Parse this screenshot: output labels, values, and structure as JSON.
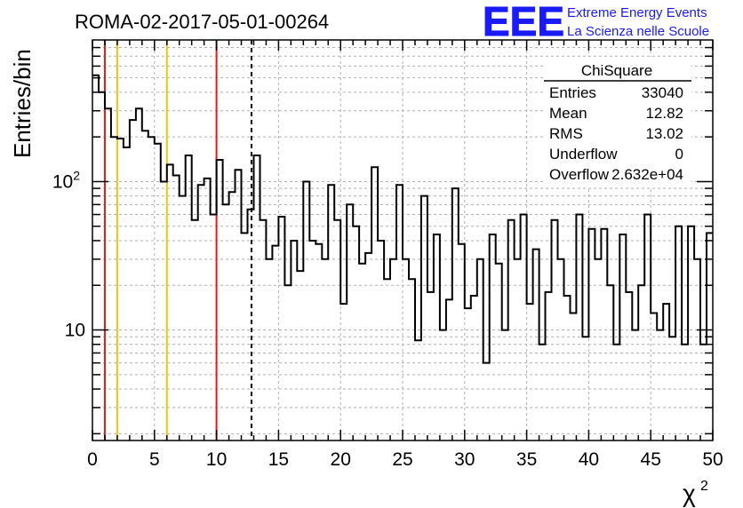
{
  "header": {
    "run_title": "ROMA-02-2017-05-01-00264",
    "logo_mark": "EEE",
    "logo_line1": "Extreme Energy Events",
    "logo_line2": "La Scienza nelle Scuole"
  },
  "stats": {
    "title": "ChiSquare",
    "rows": [
      {
        "name": "Entries",
        "value": "33040"
      },
      {
        "name": "Mean",
        "value": "12.82"
      },
      {
        "name": "RMS",
        "value": "13.02"
      },
      {
        "name": "Underflow",
        "value": "0"
      },
      {
        "name": "Overflow",
        "value": "2.632e+04"
      }
    ]
  },
  "chart_data": {
    "type": "histogram",
    "xlabel": "χ",
    "xlabel_sup": "2",
    "ylabel": "Entries/bin",
    "x_range": [
      0,
      50
    ],
    "y_range_log": [
      1.8,
      900
    ],
    "y_scale": "log",
    "grid": true,
    "bin_width": 0.5,
    "x_ticks": [
      "0",
      "5",
      "10",
      "15",
      "20",
      "25",
      "30",
      "35",
      "40",
      "45",
      "50"
    ],
    "y_tick_labels": [
      {
        "value": 10,
        "base": "10",
        "exp": ""
      },
      {
        "value": 100,
        "base": "10",
        "exp": "2"
      }
    ],
    "values": [
      520,
      400,
      310,
      200,
      195,
      170,
      260,
      310,
      220,
      200,
      180,
      100,
      130,
      110,
      80,
      150,
      55,
      95,
      105,
      60,
      140,
      70,
      85,
      120,
      45,
      65,
      150,
      55,
      30,
      37,
      58,
      20,
      40,
      25,
      100,
      40,
      38,
      30,
      95,
      55,
      15,
      70,
      50,
      28,
      33,
      125,
      40,
      22,
      30,
      95,
      30,
      22,
      8.5,
      80,
      18,
      44,
      10,
      16,
      90,
      38,
      14,
      17,
      30,
      6,
      44,
      28,
      10,
      55,
      30,
      60,
      15,
      35,
      8,
      18,
      55,
      30,
      17,
      13,
      60,
      9,
      48,
      30,
      48,
      20,
      8,
      44,
      18,
      10,
      20,
      60,
      13,
      10,
      15,
      9,
      50,
      8,
      50,
      30,
      8,
      45
    ],
    "vertical_markers": [
      {
        "x": 1.0,
        "color": "#e8191c",
        "style": "solid"
      },
      {
        "x": 2.0,
        "color": "#f2c40c",
        "style": "solid"
      },
      {
        "x": 6.0,
        "color": "#f2c40c",
        "style": "solid"
      },
      {
        "x": 10.0,
        "color": "#e8191c",
        "style": "solid"
      },
      {
        "x": 12.82,
        "color": "#000000",
        "style": "dashed"
      }
    ]
  }
}
